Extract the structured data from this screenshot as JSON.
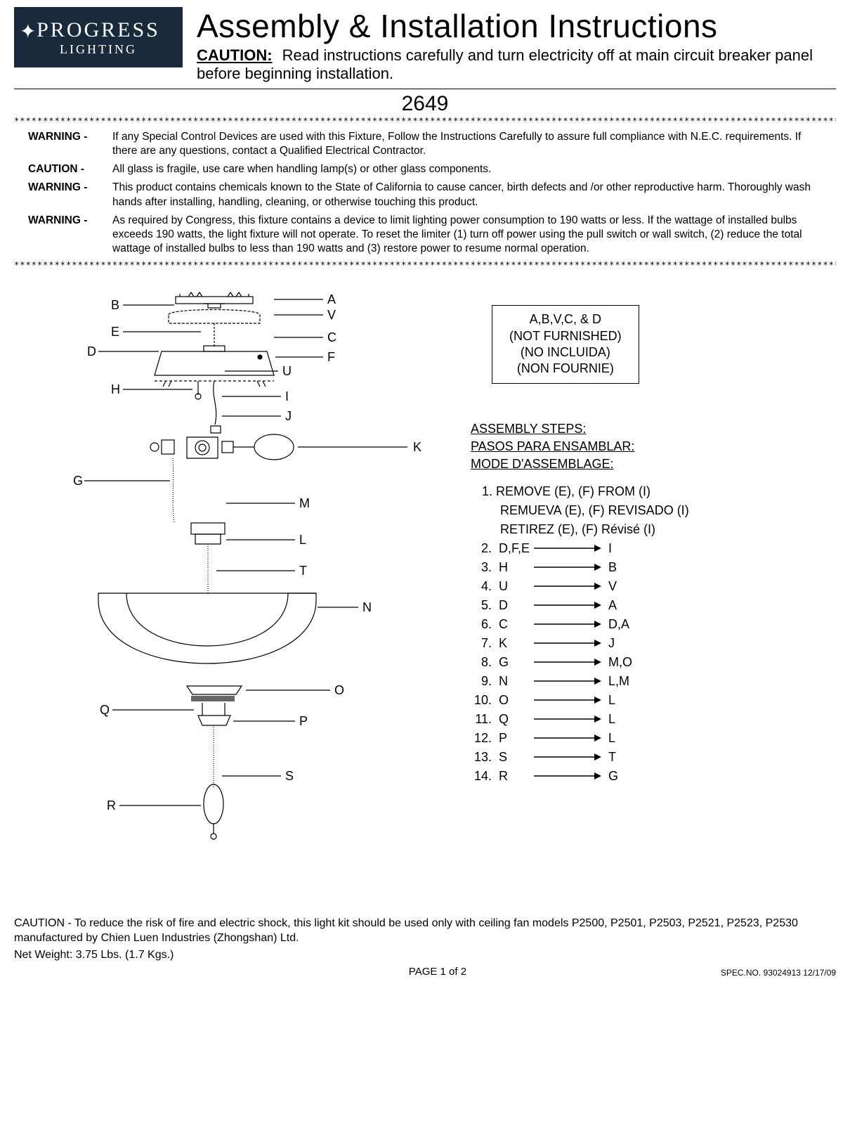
{
  "logo": {
    "main": "PROGRESS",
    "sub": "LIGHTING"
  },
  "header": {
    "title": "Assembly & Installation Instructions",
    "caution_label": "CAUTION:",
    "caution_text": "Read instructions carefully and turn electricity off at main circuit breaker panel before beginning installation."
  },
  "model_no": "2649",
  "star_row": "************************************************************************************************************************************************************************************",
  "warnings": [
    {
      "label": "WARNING -",
      "text": "If any Special Control Devices are used with this Fixture, Follow the Instructions Carefully to assure full compliance with N.E.C. requirements. If there are any questions, contact a Qualified Electrical Contractor."
    },
    {
      "label": "CAUTION -",
      "text": "All glass is fragile, use care when handling lamp(s) or other glass components."
    },
    {
      "label": "WARNING -",
      "text": "This product contains chemicals known to the State of California to cause cancer, birth defects and /or other reproductive harm.  Thoroughly wash hands after installing, handling, cleaning, or otherwise touching this product."
    },
    {
      "label": "WARNING -",
      "text": "As required by Congress, this fixture contains a device to limit lighting power consumption to 190 watts or less.  If the wattage of installed bulbs exceeds 190 watts, the light fixture will not operate. To reset the limiter (1) turn off power using the pull switch or wall switch, (2) reduce the total wattage of installed bulbs to less than 190 watts and (3) restore power to resume normal operation."
    }
  ],
  "not_furnished": {
    "line1": "A,B,V,C, & D",
    "line2": "(NOT FURNISHED)",
    "line3": "(NO INCLUIDA)",
    "line4": "(NON FOURNIE)"
  },
  "steps_headers": {
    "en": "ASSEMBLY STEPS:",
    "es": "PASOS PARA ENSAMBLAR:",
    "fr": "MODE D'ASSEMBLAGE:"
  },
  "step1": {
    "en": "1.  REMOVE (E), (F) FROM (I)",
    "es": "REMUEVA (E), (F) REVISADO (I)",
    "fr": "RETIREZ (E), (F) Révisé (I)"
  },
  "arrow_steps": [
    {
      "n": "2.",
      "from": "D,F,E",
      "to": "I"
    },
    {
      "n": "3.",
      "from": "H",
      "to": "B"
    },
    {
      "n": "4.",
      "from": "U",
      "to": "V"
    },
    {
      "n": "5.",
      "from": "D",
      "to": "A"
    },
    {
      "n": "6.",
      "from": "C",
      "to": "D,A"
    },
    {
      "n": "7.",
      "from": "K",
      "to": "J"
    },
    {
      "n": "8.",
      "from": "G",
      "to": "M,O"
    },
    {
      "n": "9.",
      "from": "N",
      "to": "L,M"
    },
    {
      "n": "10.",
      "from": "O",
      "to": "L"
    },
    {
      "n": "11.",
      "from": "Q",
      "to": "L"
    },
    {
      "n": "12.",
      "from": "P",
      "to": "L"
    },
    {
      "n": "13.",
      "from": "S",
      "to": "T"
    },
    {
      "n": "14.",
      "from": "R",
      "to": "G"
    }
  ],
  "diagram_labels": {
    "A": "A",
    "B": "B",
    "C": "C",
    "D": "D",
    "E": "E",
    "F": "F",
    "G": "G",
    "H": "H",
    "I": "I",
    "J": "J",
    "K": "K",
    "L": "L",
    "M": "M",
    "N": "N",
    "O": "O",
    "P": "P",
    "Q": "Q",
    "R": "R",
    "S": "S",
    "T": "T",
    "U": "U",
    "V": "V"
  },
  "bottom_caution": "CAUTION - To reduce the risk of fire and electric shock, this light kit should be used only with ceiling fan models P2500, P2501, P2503, P2521, P2523, P2530 manufactured by Chien Luen Industries (Zhongshan) Ltd.",
  "net_weight": "Net Weight: 3.75 Lbs. (1.7 Kgs.)",
  "page": "PAGE 1 of 2",
  "spec": "SPEC.NO.  93024913     12/17/09",
  "colors": {
    "bg": "#ffffff",
    "text": "#000000",
    "logo_bg": "#1a2a3a"
  }
}
